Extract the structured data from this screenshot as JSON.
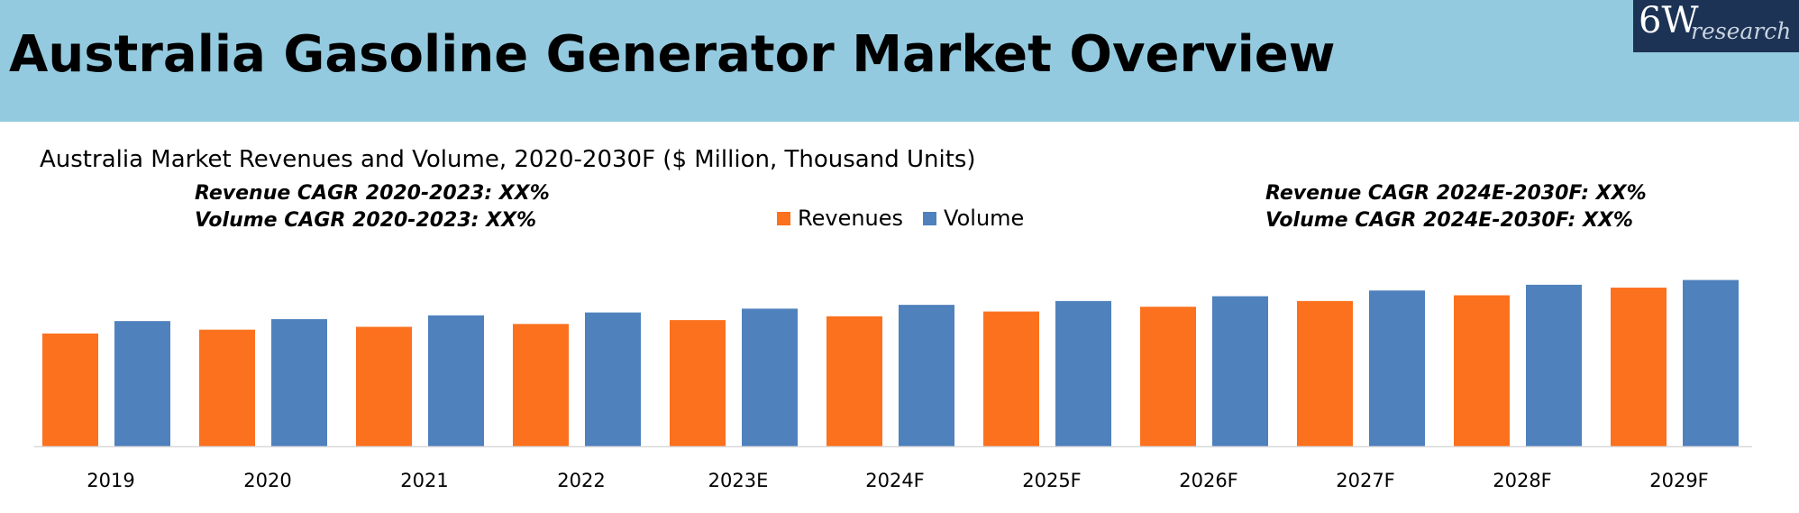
{
  "header": {
    "title": "Australia Gasoline Generator Market Overview",
    "banner_color": "#94cadf"
  },
  "logo": {
    "main": "6W",
    "sub": "research",
    "background": "#1c3355"
  },
  "cagr": {
    "left_revenue": "Revenue CAGR 2020-2023: XX%",
    "left_volume": "Volume CAGR 2020-2023: XX%",
    "right_revenue": "Revenue CAGR 2024E-2030F: XX%",
    "right_volume": "Volume CAGR 2024E-2030F: XX%"
  },
  "chart_data": {
    "type": "bar",
    "title": "Australia Market Revenues and Volume, 2020-2030F ($ Million, Thousand Units)",
    "categories": [
      "2019",
      "2020",
      "2021",
      "2022",
      "2023E",
      "2024F",
      "2025F",
      "2026F",
      "2027F",
      "2028F",
      "2029F"
    ],
    "series": [
      {
        "name": "Revenues",
        "color": "#fc711e",
        "values": [
          59,
          61,
          62.5,
          64,
          66,
          68,
          70.5,
          73,
          76,
          79,
          83
        ]
      },
      {
        "name": "Volume",
        "color": "#4f81bd",
        "values": [
          65.5,
          66.5,
          68.5,
          70,
          72,
          74,
          76,
          78.5,
          81.5,
          84.5,
          87
        ]
      }
    ],
    "ylim": [
      0,
      100
    ],
    "xlabel": "",
    "ylabel": "",
    "grid": false,
    "legend_position": "top-center"
  }
}
